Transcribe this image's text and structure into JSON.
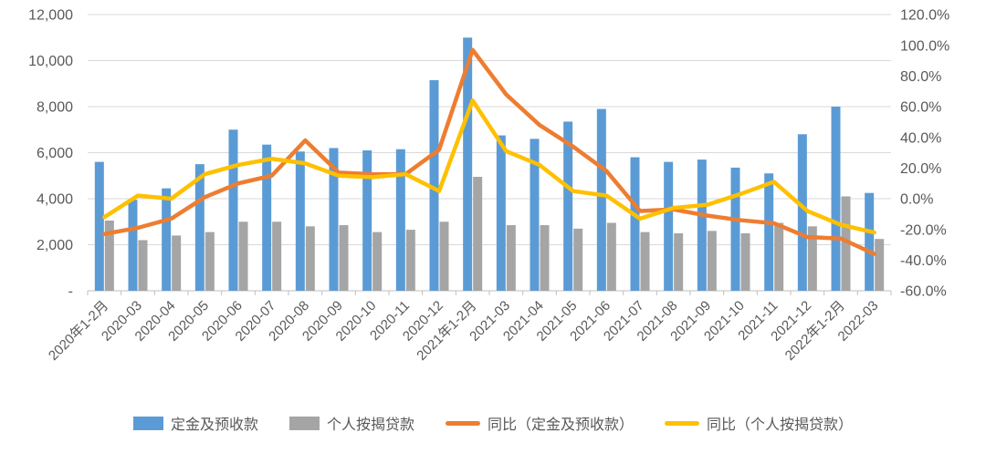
{
  "chart_data": {
    "type": "bar+line",
    "title": "",
    "categories": [
      "2020年1-2月",
      "2020-03",
      "2020-04",
      "2020-05",
      "2020-06",
      "2020-07",
      "2020-08",
      "2020-09",
      "2020-10",
      "2020-11",
      "2020-12",
      "2021年1-2月",
      "2021-03",
      "2021-04",
      "2021-05",
      "2021-06",
      "2021-07",
      "2021-08",
      "2021-09",
      "2021-10",
      "2021-11",
      "2021-12",
      "2022年1-2月",
      "2022-03"
    ],
    "series": [
      {
        "name": "定金及预收款",
        "kind": "bar",
        "axis": "left",
        "color": "#5B9BD5",
        "values": [
          5600,
          3950,
          4450,
          5500,
          7000,
          6350,
          6050,
          6200,
          6100,
          6150,
          9150,
          11000,
          6750,
          6600,
          7350,
          7900,
          5800,
          5600,
          5700,
          5350,
          5100,
          6800,
          8000,
          4250
        ]
      },
      {
        "name": "个人按揭贷款",
        "kind": "bar",
        "axis": "left",
        "color": "#A5A5A5",
        "values": [
          3050,
          2200,
          2400,
          2550,
          3000,
          3000,
          2800,
          2850,
          2550,
          2650,
          3000,
          4950,
          2850,
          2850,
          2700,
          2950,
          2550,
          2500,
          2600,
          2500,
          2950,
          2800,
          4100,
          2250
        ]
      },
      {
        "name": "同比（定金及预收款）",
        "kind": "line",
        "axis": "right",
        "unit": "%",
        "color": "#ED7D31",
        "values": [
          -23,
          -19,
          -13,
          1,
          10,
          15,
          38,
          17,
          16,
          16,
          32,
          97,
          68,
          48,
          34,
          18,
          -8,
          -7,
          -11,
          -14,
          -16,
          -25,
          -26,
          -36
        ]
      },
      {
        "name": "同比（个人按揭贷款）",
        "kind": "line",
        "axis": "right",
        "unit": "%",
        "color": "#FFC000",
        "values": [
          -12,
          2,
          0,
          16,
          22,
          26,
          23,
          15,
          14,
          16,
          5,
          64,
          31,
          22,
          5,
          2,
          -13,
          -6,
          -4,
          3,
          11,
          -8,
          -17,
          -22
        ]
      }
    ],
    "left_axis": {
      "ylim": [
        0,
        12000
      ],
      "tick_step": 2000,
      "tick_labels": [
        "12,000",
        "10,000",
        "8,000",
        "6,000",
        "4,000",
        "2,000",
        "-"
      ]
    },
    "right_axis": {
      "ylim_pct": [
        -60,
        120
      ],
      "tick_step_pct": 20,
      "tick_labels": [
        "120.0%",
        "100.0%",
        "80.0%",
        "60.0%",
        "40.0%",
        "20.0%",
        "0.0%",
        "-20.0%",
        "-40.0%",
        "-60.0%"
      ]
    },
    "grid": true,
    "legend_position": "bottom",
    "xlabel": "",
    "ylabel": ""
  },
  "colors": {
    "text": "#595959",
    "gridline": "#D9D9D9",
    "axis_line": "#BFBFBF",
    "background": "#FFFFFF"
  }
}
